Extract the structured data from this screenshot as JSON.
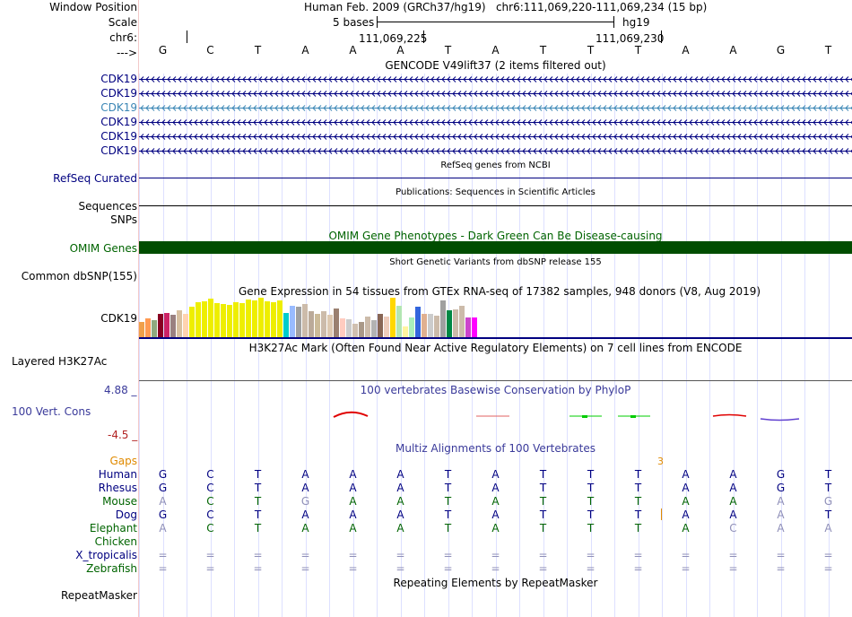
{
  "header": {
    "window_position_label": "Window Position",
    "scale_label": "Scale",
    "chrom_label": "chr6:",
    "dna_label": "--->",
    "position_title": "Human Feb. 2009 (GRCh37/hg19)   chr6:111,069,220-111,069,234 (15 bp)",
    "scale_text": "5 bases",
    "assembly": "hg19",
    "coord_left": "111,069,225",
    "coord_right": "111,069,230"
  },
  "sequence": [
    "G",
    "C",
    "T",
    "A",
    "A",
    "A",
    "T",
    "A",
    "T",
    "T",
    "T",
    "A",
    "A",
    "G",
    "T"
  ],
  "gencode": {
    "title": "GENCODE V49lift37 (2 items filtered out)",
    "rows": [
      "CDK19",
      "CDK19",
      "CDK19",
      "CDK19",
      "CDK19",
      "CDK19"
    ],
    "colors": [
      "#000080",
      "#000080",
      "#3b86b5",
      "#000080",
      "#000080",
      "#000080"
    ]
  },
  "refseq": {
    "label": "RefSeq Curated",
    "title": "RefSeq genes from NCBI"
  },
  "publications": {
    "label": "Sequences",
    "title": "Publications: Sequences in Scientific Articles"
  },
  "snps_label": "SNPs",
  "omim": {
    "title": "OMIM Gene Phenotypes - Dark Green Can Be Disease-causing",
    "label": "OMIM Genes",
    "color": "#004d00"
  },
  "dbsnp": {
    "title": "Short Genetic Variants from dbSNP release 155",
    "label": "Common dbSNP(155)"
  },
  "gtex": {
    "title": "Gene Expression in 54 tissues from GTEx RNA-seq of 17382 samples, 948 donors (V8, Aug 2019)",
    "label": "CDK19",
    "colors": [
      "#f0a04a",
      "#ff9a52",
      "#8faa7f",
      "#880022",
      "#cc2266",
      "#9a8080",
      "#d8c0a0",
      "#ffd3b0",
      "#eeee00",
      "#eeee00",
      "#eeee00",
      "#eeee00",
      "#eeee00",
      "#eeee00",
      "#eeee00",
      "#eeee00",
      "#eeee00",
      "#eeee00",
      "#eeee00",
      "#eeee00",
      "#eeee00",
      "#eeee00",
      "#eeee00",
      "#00cccc",
      "#99bbff",
      "#a0a0a0",
      "#ccbbaa",
      "#bbaa99",
      "#ccbb99",
      "#ccbbaa",
      "#ddc8b0",
      "#9a8070",
      "#ffccc0",
      "#cccccc",
      "#d0c0b0",
      "#aa9988",
      "#ccbbaa",
      "#b3b3b3",
      "#886655",
      "#eeccbb",
      "#ffd700",
      "#b3e6b3",
      "#fff5a0",
      "#aaeebb",
      "#3366dd",
      "#e0b090",
      "#cccccc",
      "#ccbbaa",
      "#a0a0a0",
      "#008844",
      "#ccbbaa",
      "#ccbbaa",
      "#cc44cc",
      "#ff00ff"
    ],
    "values": [
      0.37,
      0.45,
      0.42,
      0.57,
      0.59,
      0.55,
      0.65,
      0.57,
      0.73,
      0.84,
      0.87,
      0.93,
      0.82,
      0.8,
      0.78,
      0.84,
      0.82,
      0.91,
      0.89,
      0.96,
      0.86,
      0.84,
      0.89,
      0.59,
      0.77,
      0.73,
      0.8,
      0.62,
      0.57,
      0.64,
      0.55,
      0.7,
      0.45,
      0.43,
      0.32,
      0.36,
      0.5,
      0.41,
      0.57,
      0.5,
      0.95,
      0.75,
      0.27,
      0.48,
      0.73,
      0.57,
      0.57,
      0.52,
      0.89,
      0.66,
      0.68,
      0.75,
      0.48,
      0.48
    ]
  },
  "h3k27ac": {
    "title": "H3K27Ac Mark (Often Found Near Active Regulatory Elements) on 7 cell lines from ENCODE",
    "label": "Layered H3K27Ac"
  },
  "phylop": {
    "title": "100 vertebrates Basewise Conservation by PhyloP",
    "label": "100 Vert. Cons",
    "max": "4.88 _",
    "min": "-4.5 _",
    "max_value": 4.88,
    "min_value": -4.5
  },
  "multiz": {
    "title": "Multiz Alignments of 100 Vertebrates",
    "gaps_label": "Gaps",
    "gap_count": "3",
    "species": [
      {
        "name": "Human",
        "cls": "navy",
        "bases": [
          "G",
          "C",
          "T",
          "A",
          "A",
          "A",
          "T",
          "A",
          "T",
          "T",
          "T",
          "A",
          "A",
          "G",
          "T"
        ],
        "muted": [
          false,
          false,
          false,
          false,
          false,
          false,
          false,
          false,
          false,
          false,
          false,
          false,
          false,
          false,
          false
        ]
      },
      {
        "name": "Rhesus",
        "cls": "navy",
        "bases": [
          "G",
          "C",
          "T",
          "A",
          "A",
          "A",
          "T",
          "A",
          "T",
          "T",
          "T",
          "A",
          "A",
          "G",
          "T"
        ],
        "muted": [
          false,
          false,
          false,
          false,
          false,
          false,
          false,
          false,
          false,
          false,
          false,
          false,
          false,
          false,
          false
        ]
      },
      {
        "name": "Mouse",
        "cls": "green",
        "bases": [
          "A",
          "C",
          "T",
          "G",
          "A",
          "A",
          "T",
          "A",
          "T",
          "T",
          "T",
          "A",
          "A",
          "A",
          "G"
        ],
        "muted": [
          true,
          false,
          false,
          true,
          false,
          false,
          false,
          false,
          false,
          false,
          false,
          false,
          false,
          true,
          true
        ]
      },
      {
        "name": "Dog",
        "cls": "navy",
        "bases": [
          "G",
          "C",
          "T",
          "A",
          "A",
          "A",
          "T",
          "A",
          "T",
          "T",
          "T",
          "A",
          "A",
          "A",
          "T"
        ],
        "muted": [
          false,
          false,
          false,
          false,
          false,
          false,
          false,
          false,
          false,
          false,
          false,
          false,
          false,
          true,
          false
        ]
      },
      {
        "name": "Elephant",
        "cls": "green",
        "bases": [
          "A",
          "C",
          "T",
          "A",
          "A",
          "A",
          "T",
          "A",
          "T",
          "T",
          "T",
          "A",
          "C",
          "A",
          "A"
        ],
        "muted": [
          true,
          false,
          false,
          false,
          false,
          false,
          false,
          false,
          false,
          false,
          false,
          false,
          true,
          true,
          true
        ]
      },
      {
        "name": "Chicken",
        "cls": "green",
        "bases": [],
        "muted": []
      },
      {
        "name": "X_tropicalis",
        "cls": "navy",
        "bases": [
          "=",
          "=",
          "=",
          "=",
          "=",
          "=",
          "=",
          "=",
          "=",
          "=",
          "=",
          "=",
          "=",
          "=",
          "="
        ],
        "muted": [
          true,
          true,
          true,
          true,
          true,
          true,
          true,
          true,
          true,
          true,
          true,
          true,
          true,
          true,
          true
        ]
      },
      {
        "name": "Zebrafish",
        "cls": "green",
        "bases": [
          "=",
          "=",
          "=",
          "=",
          "=",
          "=",
          "=",
          "=",
          "=",
          "=",
          "=",
          "=",
          "=",
          "=",
          "="
        ],
        "muted": [
          true,
          true,
          true,
          true,
          true,
          true,
          true,
          true,
          true,
          true,
          true,
          true,
          true,
          true,
          true
        ]
      }
    ]
  },
  "repeatmasker": {
    "title": "Repeating Elements by RepeatMasker",
    "label": "RepeatMasker"
  }
}
